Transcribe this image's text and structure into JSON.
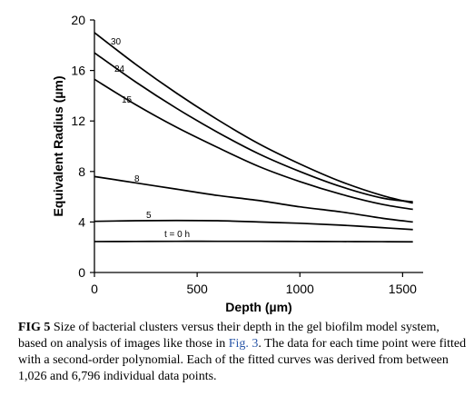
{
  "chart_data": {
    "type": "line",
    "xlabel": "Depth (µm)",
    "ylabel": "Equivalent Radius (µm)",
    "xlim": [
      0,
      1600
    ],
    "ylim": [
      0,
      20
    ],
    "xticks": [
      "0",
      "500",
      "1000",
      "1500"
    ],
    "yticks": [
      "0",
      "4",
      "8",
      "12",
      "16",
      "20"
    ],
    "grid": false,
    "legend": "none",
    "series": [
      {
        "name": "30",
        "x": [
          0,
          200,
          400,
          600,
          800,
          1000,
          1200,
          1400,
          1550
        ],
        "y": [
          19.0,
          16.5,
          14.2,
          12.1,
          10.2,
          8.6,
          7.2,
          6.1,
          5.5
        ]
      },
      {
        "name": "24",
        "x": [
          0,
          200,
          400,
          600,
          800,
          1000,
          1200,
          1400,
          1550
        ],
        "y": [
          17.4,
          15.1,
          13.0,
          11.1,
          9.4,
          8.0,
          6.8,
          5.9,
          5.6
        ]
      },
      {
        "name": "15",
        "x": [
          0,
          200,
          400,
          600,
          800,
          1000,
          1200,
          1400,
          1550
        ],
        "y": [
          15.3,
          13.3,
          11.5,
          9.9,
          8.4,
          7.2,
          6.2,
          5.4,
          5.0
        ]
      },
      {
        "name": "8",
        "x": [
          0,
          200,
          400,
          600,
          800,
          1000,
          1200,
          1400,
          1550
        ],
        "y": [
          7.6,
          7.1,
          6.6,
          6.1,
          5.7,
          5.2,
          4.8,
          4.3,
          4.0
        ]
      },
      {
        "name": "5",
        "x": [
          0,
          200,
          400,
          600,
          800,
          1000,
          1200,
          1400,
          1550
        ],
        "y": [
          4.05,
          4.1,
          4.12,
          4.1,
          4.0,
          3.9,
          3.75,
          3.55,
          3.4
        ]
      },
      {
        "name": "t = 0 h",
        "x": [
          0,
          200,
          400,
          600,
          800,
          1000,
          1200,
          1400,
          1550
        ],
        "y": [
          2.45,
          2.46,
          2.47,
          2.47,
          2.47,
          2.46,
          2.45,
          2.44,
          2.43
        ]
      }
    ]
  },
  "caption": {
    "label": "FIG 5",
    "text_before": " Size of bacterial clusters versus their depth in the gel biofilm model system, based on analysis of images like those in ",
    "ref": "Fig. 3",
    "text_after": ". The data for each time point were fitted with a second-order polynomial. Each of the fitted curves was derived from between 1,026 and 6,796 individual data points."
  }
}
